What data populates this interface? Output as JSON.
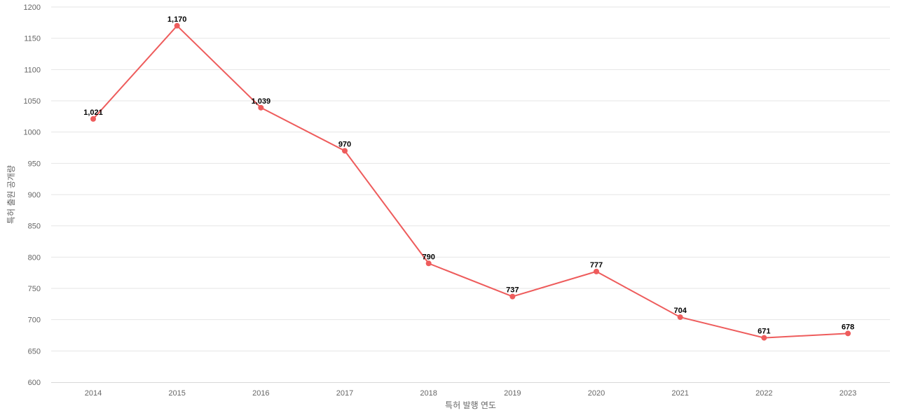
{
  "chart_data": {
    "type": "line",
    "title": "",
    "xlabel": "특허 발행 연도",
    "ylabel": "특허 출원 공개량",
    "categories": [
      "2014",
      "2015",
      "2016",
      "2017",
      "2018",
      "2019",
      "2020",
      "2021",
      "2022",
      "2023"
    ],
    "series": [
      {
        "values": [
          1021,
          1170,
          1039,
          970,
          790,
          737,
          777,
          704,
          671,
          678
        ],
        "data_labels": [
          "1,021",
          "1,170",
          "1,039",
          "970",
          "790",
          "737",
          "777",
          "704",
          "671",
          "678"
        ],
        "color": "#ee5c5c"
      }
    ],
    "ylim": [
      600,
      1200
    ],
    "yticks": [
      600,
      650,
      700,
      750,
      800,
      850,
      900,
      950,
      1000,
      1050,
      1100,
      1150,
      1200
    ],
    "grid": true,
    "legend": "none"
  }
}
